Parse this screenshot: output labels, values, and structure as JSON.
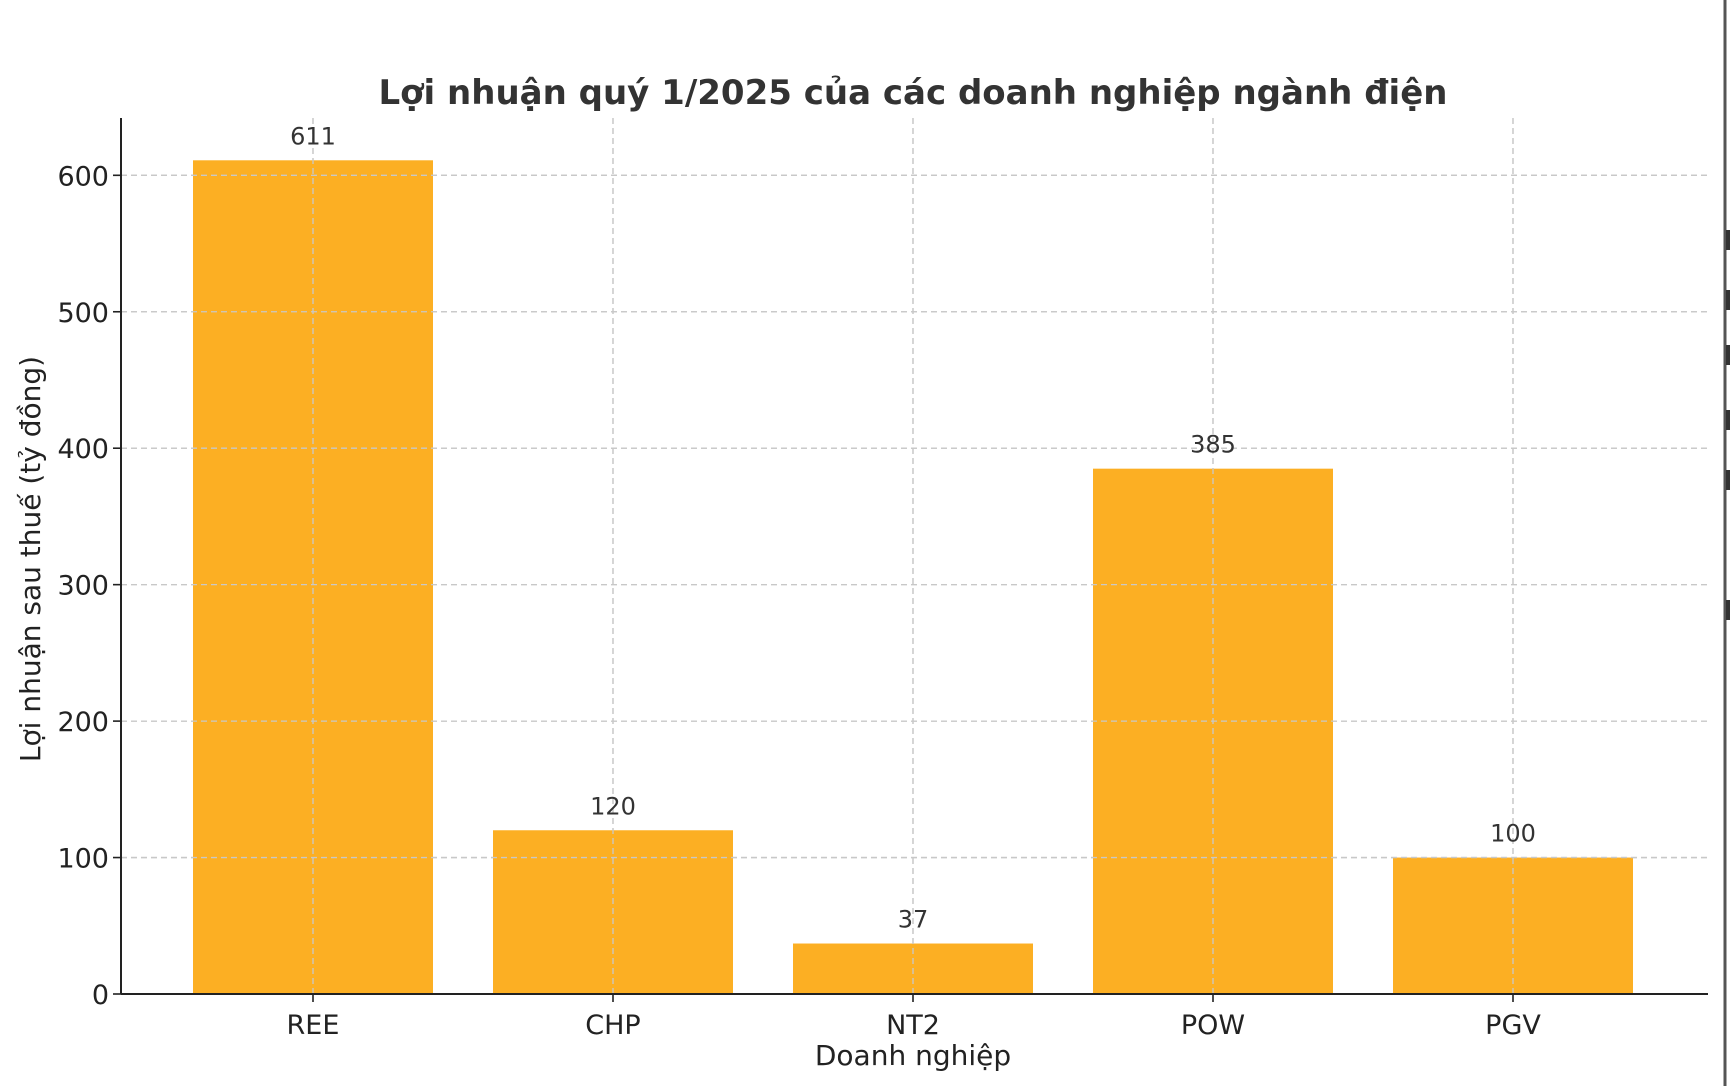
{
  "chart_data": {
    "type": "bar",
    "title": "Lợi nhuận quý 1/2025 của các doanh nghiệp ngành điện",
    "xlabel": "Doanh nghiệp",
    "ylabel": "Lợi nhuận sau thuế (tỷ đồng)",
    "categories": [
      "REE",
      "CHP",
      "NT2",
      "POW",
      "PGV"
    ],
    "values": [
      611,
      120,
      37,
      385,
      100
    ],
    "data_labels": [
      "611",
      "120",
      "37",
      "385",
      "100"
    ],
    "yticks": [
      0,
      100,
      200,
      300,
      400,
      500,
      600
    ],
    "ylim": [
      0,
      642
    ],
    "grid": true,
    "legend": "none",
    "bar_color": "#FCAF23"
  }
}
